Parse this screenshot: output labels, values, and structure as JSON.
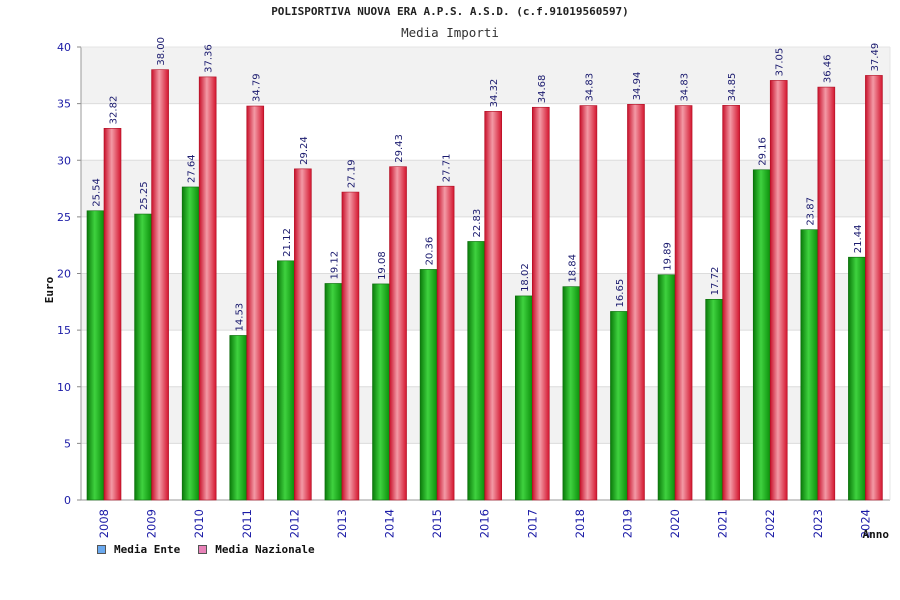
{
  "chart_data": {
    "type": "bar",
    "title": "POLISPORTIVA NUOVA ERA A.P.S. A.S.D. (c.f.91019560597)",
    "subtitle": "Media Importi",
    "xlabel": "Anno",
    "ylabel": "Euro",
    "ylim": [
      0,
      40
    ],
    "yticks": [
      "0",
      "5",
      "10",
      "15",
      "20",
      "25",
      "30",
      "35",
      "40"
    ],
    "grid": true,
    "legend_position": "bottom-left",
    "categories": [
      "2008",
      "2009",
      "2010",
      "2011",
      "2012",
      "2013",
      "2014",
      "2015",
      "2016",
      "2017",
      "2018",
      "2019",
      "2020",
      "2021",
      "2022",
      "2023",
      "2024"
    ],
    "series": [
      {
        "name": "Media Ente",
        "color": "#1fae1f",
        "legend_color": "#6aa9ef",
        "values": [
          25.54,
          25.25,
          27.64,
          14.53,
          21.12,
          19.12,
          19.08,
          20.36,
          22.83,
          18.02,
          18.84,
          16.65,
          19.89,
          17.72,
          29.16,
          23.87,
          21.44
        ],
        "labels": [
          "25.54",
          "25.25",
          "27.64",
          "14.53",
          "21.12",
          "19.12",
          "19.08",
          "20.36",
          "22.83",
          "18.02",
          "18.84",
          "16.65",
          "19.89",
          "17.72",
          "29.16",
          "23.87",
          "21.44"
        ]
      },
      {
        "name": "Media Nazionale",
        "color": "#e8283a",
        "legend_color": "#e882b8",
        "values": [
          32.82,
          38.0,
          37.36,
          34.79,
          29.24,
          27.19,
          29.43,
          27.71,
          34.32,
          34.68,
          34.83,
          34.94,
          34.83,
          34.85,
          37.05,
          36.46,
          37.49
        ],
        "labels": [
          "32.82",
          "38.00",
          "37.36",
          "34.79",
          "29.24",
          "27.19",
          "29.43",
          "27.71",
          "34.32",
          "34.68",
          "34.83",
          "34.94",
          "34.83",
          "34.85",
          "37.05",
          "36.46",
          "37.49"
        ]
      }
    ]
  }
}
